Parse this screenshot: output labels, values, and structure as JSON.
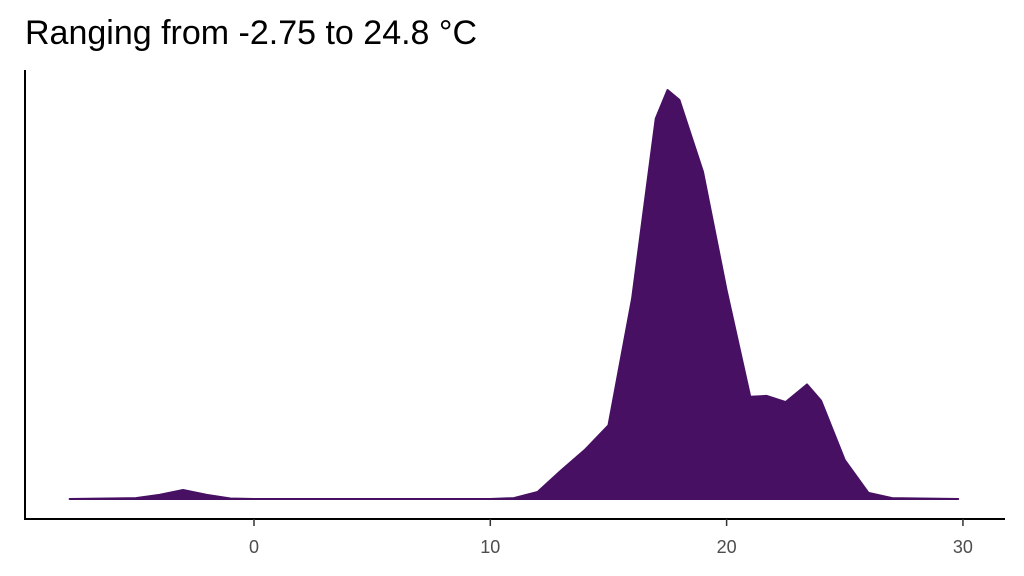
{
  "chart_data": {
    "type": "area",
    "title": "Ranging from -2.75 to 24.8 °C",
    "x": [
      -7.8,
      -5,
      -4,
      -3,
      -2,
      -1,
      0,
      5,
      10,
      11,
      12,
      13,
      14,
      15,
      16,
      17,
      17.5,
      18,
      19,
      20,
      21,
      21.7,
      22.5,
      23.4,
      24,
      25,
      26,
      27,
      29.8
    ],
    "values": [
      0,
      0.0002,
      0.001,
      0.0022,
      0.001,
      0.0001,
      0,
      0,
      0,
      0.0002,
      0.0017,
      0.007,
      0.012,
      0.018,
      0.049,
      0.093,
      0.1,
      0.0976,
      0.08,
      0.051,
      0.025,
      0.0252,
      0.0237,
      0.028,
      0.024,
      0.0095,
      0.0015,
      0.0002,
      0
    ],
    "color": "#471063",
    "xlim": [
      -9.69,
      31.78
    ],
    "xticks": [
      0,
      10,
      20,
      30
    ],
    "ylim": [
      -0.0049,
      0.1049
    ]
  }
}
